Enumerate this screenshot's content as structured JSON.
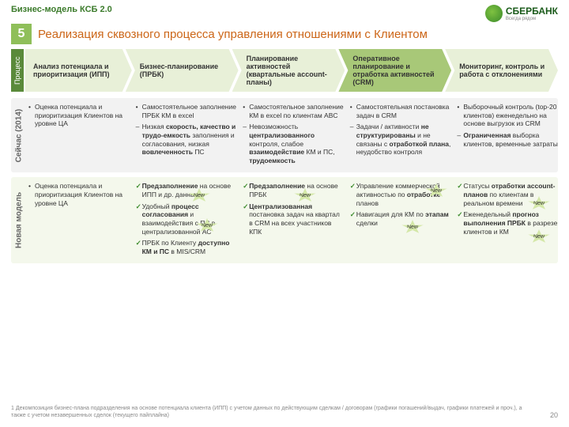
{
  "header": {
    "breadcrumb": "Бизнес-модель КСБ 2.0",
    "logo_text": "СБЕРБАНК",
    "logo_sub": "Всегда рядом"
  },
  "title": {
    "num": "5",
    "text": "Реализация сквозного процесса управления отношениями с Клиентом"
  },
  "process_label": "Процесс",
  "arrows": [
    "Анализ потенциала и приоритизация (ИПП)",
    "Бизнес-планирование (ПРБК)",
    "Планирование активностей (квартальные account-планы)",
    "Оперативное планирование и отработка активностей (CRM)",
    "Мониторинг, контроль и работа с отклонениями"
  ],
  "current": {
    "label": "Сейчас (2014)",
    "cols": [
      [
        "Оценка потенциала и приоритизация Клиентов на уровне ЦА"
      ],
      [
        "Самостоятельное заполнение ПРБК КМ в excel",
        "Низкая <b>скорость, качество и трудо-емкость</b> заполнения и согласования, низкая <b>вовлеченность</b> ПС"
      ],
      [
        "Самостоятельное заполнение КМ в excel по клиентам ABC",
        "Невозможность <b>централизованного</b> контроля, слабое <b>взаимодействие</b> КМ и ПС, <b>трудоемкость</b>"
      ],
      [
        "Самостоятельная постановка задач в CRM",
        "Задачи / активности <b>не структурированы</b> и не связаны с <b>отработкой плана</b>, неудобство контроля"
      ],
      [
        "Выборочный контроль (top-20 клиентов) еженедельно на основе выгрузок из CRM",
        "<b>Ограниченная</b> выборка клиентов, временные затраты"
      ]
    ]
  },
  "newmodel": {
    "label": "Новая модель",
    "cols": [
      [
        "Оценка потенциала и приоритизация Клиентов на уровне ЦА"
      ],
      [
        "<b>Предзаполнение</b> на основе ИПП и др. данных¹",
        "Удобный <b>процесс согласования</b> и взаимодействия с ПС в централизованной АС",
        "ПРБК по Клиенту <b>доступно КМ и ПС</b> в MIS/CRM"
      ],
      [
        "<b>Предзаполнение</b> на основе ПРБК",
        "<b>Централизованная</b> постановка задач на квартал в CRM на всех участников КПК"
      ],
      [
        "Управление коммерческой активностью по <b>отработке</b> планов",
        "Навигация для КМ по <b>этапам</b> сделки"
      ],
      [
        "Статусы <b>отработки account-планов</b> по клиентам в реальном времени",
        "Еженедельный <b>прогноз выполнения ПРБК</b> в разрезе клиентов и КМ"
      ]
    ]
  },
  "new_label": "New",
  "footnote": "1 Декомпозиция бизнес-плана подразделения на основе потенциала клиента (ИПП) с учетом данных по действующим сделкам / договорам (графики погашений/выдач, графики платежей и проч.), а также с учетом незавершенных сделок (текущего пайплайна)",
  "page": "20",
  "colors": {
    "green": "#3a7a2a",
    "orange": "#cc6618",
    "box_light": "#e8f0d8",
    "box_dark": "#a8c878"
  }
}
